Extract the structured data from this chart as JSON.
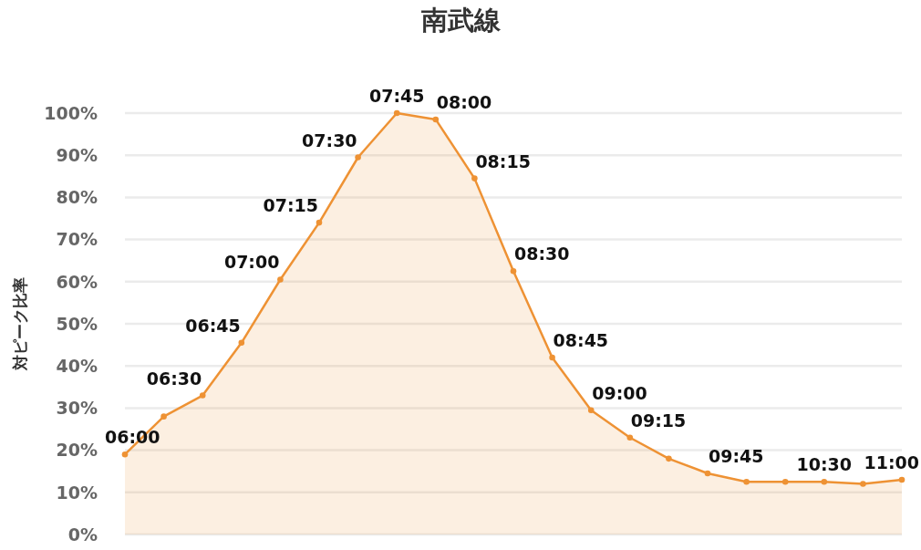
{
  "chart_data": {
    "type": "area",
    "title": "南武線",
    "ylabel": "対ピーク比率",
    "categories": [
      null,
      null,
      null,
      null,
      null,
      null,
      null,
      null,
      null,
      null,
      null,
      null,
      null,
      null,
      null,
      null,
      null,
      null,
      null,
      null,
      null
    ],
    "values": [
      19,
      28,
      33,
      45.5,
      60.5,
      74,
      89.5,
      100,
      98.5,
      84.5,
      62.5,
      42,
      29.5,
      23,
      18,
      14.5,
      12.5,
      12.5,
      12.5,
      12,
      13
    ],
    "color": "#ee9234",
    "ylim": [
      0,
      100
    ],
    "yticks": [
      {
        "value": 0,
        "label": "0%"
      },
      {
        "value": 10,
        "label": "10%"
      },
      {
        "value": 20,
        "label": "20%"
      },
      {
        "value": 30,
        "label": "30%"
      },
      {
        "value": 40,
        "label": "40%"
      },
      {
        "value": 50,
        "label": "50%"
      },
      {
        "value": 60,
        "label": "60%"
      },
      {
        "value": 70,
        "label": "70%"
      },
      {
        "value": 80,
        "label": "80%"
      },
      {
        "value": 90,
        "label": "90%"
      },
      {
        "value": 100,
        "label": "100%"
      }
    ],
    "grid": "y",
    "marker": "circle",
    "annotations": [
      "06:00",
      "06:30",
      "06:45",
      "07:00",
      "07:15",
      "07:30",
      "07:45",
      "08:00",
      "08:15",
      "08:30",
      "08:45",
      "09:00",
      "09:15",
      "09:45",
      "10:30",
      "11:00"
    ]
  }
}
